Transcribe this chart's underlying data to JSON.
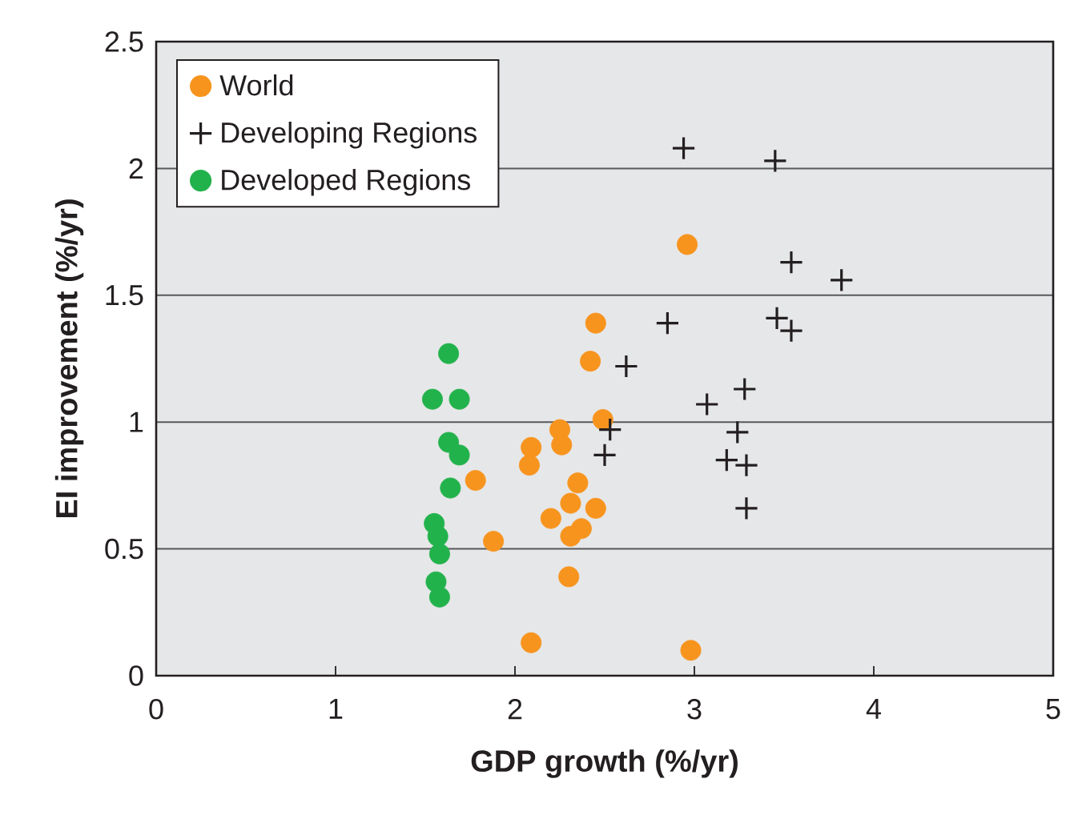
{
  "chart_data": {
    "type": "scatter",
    "xlabel": "GDP growth (%/yr)",
    "ylabel": "EI improvement (%/yr)",
    "xlim": [
      0,
      5
    ],
    "ylim": [
      0,
      2.5
    ],
    "xticks": [
      0,
      1,
      2,
      3,
      4,
      5
    ],
    "yticks": [
      0,
      0.5,
      1,
      1.5,
      2,
      2.5
    ],
    "grid": "y",
    "legend": "top left",
    "series": [
      {
        "name": "World",
        "color": "#f7941e",
        "marker": "circle",
        "x": [
          2.96,
          2.45,
          2.42,
          2.49,
          2.25,
          2.26,
          2.09,
          2.08,
          1.78,
          2.35,
          2.31,
          2.45,
          2.2,
          2.37,
          2.31,
          1.88,
          2.3,
          2.09,
          2.98
        ],
        "values": [
          1.7,
          1.39,
          1.24,
          1.01,
          0.97,
          0.91,
          0.9,
          0.83,
          0.77,
          0.76,
          0.68,
          0.66,
          0.62,
          0.58,
          0.55,
          0.53,
          0.39,
          0.13,
          0.1
        ]
      },
      {
        "name": "Developing Regions",
        "color": "#231f20",
        "marker": "cross",
        "x": [
          2.94,
          3.45,
          3.54,
          3.82,
          2.85,
          3.46,
          3.54,
          2.62,
          3.28,
          3.07,
          2.53,
          3.24,
          2.5,
          3.18,
          3.29,
          3.29
        ],
        "values": [
          2.08,
          2.03,
          1.63,
          1.56,
          1.39,
          1.41,
          1.36,
          1.22,
          1.13,
          1.07,
          0.97,
          0.96,
          0.87,
          0.85,
          0.83,
          0.66
        ]
      },
      {
        "name": "Developed Regions",
        "color": "#22b24c",
        "marker": "circle",
        "x": [
          1.63,
          1.54,
          1.69,
          1.63,
          1.69,
          1.64,
          1.55,
          1.57,
          1.58,
          1.56,
          1.58
        ],
        "values": [
          1.27,
          1.09,
          1.09,
          0.92,
          0.87,
          0.74,
          0.6,
          0.55,
          0.48,
          0.37,
          0.31
        ]
      }
    ]
  }
}
